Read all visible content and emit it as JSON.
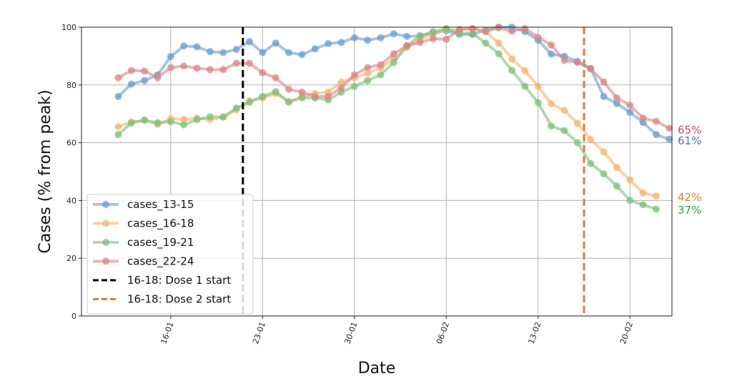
{
  "chart_data": {
    "type": "line",
    "xlabel": "Date",
    "ylabel": "Cases (% from peak)",
    "ylim": [
      0,
      100
    ],
    "yticks": [
      0,
      20,
      40,
      60,
      80,
      100
    ],
    "x_start_day": 12,
    "x_range_days": [
      9.2,
      54.2
    ],
    "xtick_days": [
      16,
      23,
      30,
      37,
      44,
      51
    ],
    "xtick_labels": [
      "16-01",
      "23-01",
      "30-01",
      "06-02",
      "13-02",
      "20-02"
    ],
    "grid": true,
    "legend_position": "lower-left",
    "series": [
      {
        "name": "cases_13-15",
        "color": "#6a9fcf",
        "end_label": "61%",
        "values": [
          76,
          80.3,
          81.5,
          83.5,
          89.8,
          93.5,
          93.2,
          91.5,
          91.2,
          92.3,
          95,
          91.2,
          94.5,
          91.2,
          90.5,
          92.5,
          94.3,
          94.7,
          96.3,
          95.5,
          96.3,
          97.7,
          96.8,
          96.9,
          98,
          98.8,
          97.5,
          97.5,
          99,
          100,
          100,
          98.5,
          95.5,
          90.7,
          89.9,
          88.2,
          85.7,
          76,
          73.6,
          70.5,
          67,
          62.8,
          61.2
        ]
      },
      {
        "name": "cases_16-18",
        "color": "#f5b46e",
        "end_label": "42%",
        "values": [
          65.5,
          67.2,
          67.8,
          66.3,
          68.3,
          68,
          68.5,
          68,
          68.8,
          71.4,
          74.5,
          75.5,
          77,
          74,
          76,
          77,
          77.5,
          81,
          82.5,
          84,
          86,
          89,
          93,
          95.8,
          97.5,
          99.2,
          99,
          99.5,
          98.4,
          94.5,
          89,
          84.9,
          79.5,
          73.5,
          71.2,
          66.7,
          61.2,
          56.8,
          51.4,
          47.1,
          42.6,
          41.5
        ]
      },
      {
        "name": "cases_19-21",
        "color": "#7fc07c",
        "end_label": "37%",
        "values": [
          62.8,
          66.8,
          67.8,
          66.9,
          67.3,
          66.2,
          68,
          69,
          68.9,
          72,
          74,
          76,
          77.7,
          74.2,
          75.5,
          75.5,
          74.8,
          77.5,
          79.5,
          81.5,
          83.5,
          87.8,
          93.5,
          97,
          98.5,
          99.5,
          98,
          97.8,
          94.5,
          90.8,
          85,
          79.5,
          73.8,
          65.8,
          64.2,
          60,
          52.8,
          49.2,
          45,
          40,
          38.5,
          37
        ]
      },
      {
        "name": "cases_22-24",
        "color": "#d98585",
        "end_label": "65%",
        "values": [
          82.5,
          85,
          84.8,
          82.5,
          86,
          86.5,
          85.8,
          85.3,
          85.3,
          87.5,
          87.5,
          84.2,
          82.5,
          78.5,
          77.5,
          76,
          76,
          79,
          83.5,
          86,
          87,
          90.8,
          93.6,
          94.7,
          96,
          95.8,
          99.2,
          99.5,
          98.6,
          99.8,
          98.6,
          99.5,
          96.5,
          93.8,
          88.5,
          87.8,
          85.6,
          81,
          75.5,
          73,
          68.5,
          67.4,
          65
        ]
      }
    ],
    "reference_lines": [
      {
        "label": "16-18: Dose 1 start",
        "day": 21.5,
        "color": "#000000"
      },
      {
        "label": "16-18: Dose 2 start",
        "day": 47.5,
        "color": "#e07b39"
      }
    ]
  }
}
